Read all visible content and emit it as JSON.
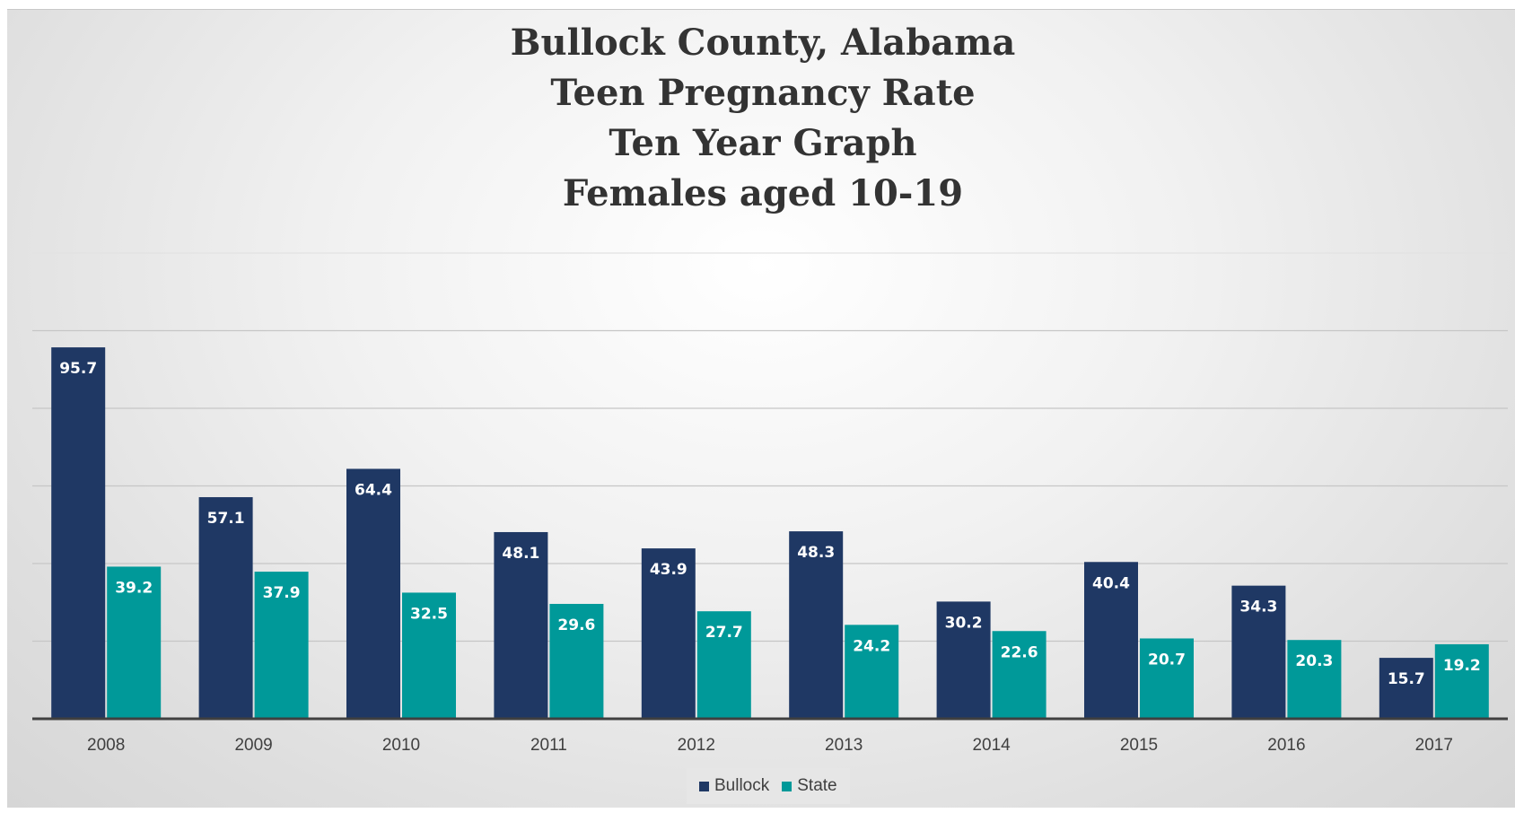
{
  "chart_data": {
    "type": "bar",
    "title_lines": [
      "Bullock County, Alabama",
      "Teen Pregnancy Rate",
      "Ten Year Graph",
      "Females aged 10-19"
    ],
    "categories": [
      "2008",
      "2009",
      "2010",
      "2011",
      "2012",
      "2013",
      "2014",
      "2015",
      "2016",
      "2017"
    ],
    "series": [
      {
        "name": "Bullock",
        "color": "#1f3864",
        "values": [
          95.7,
          57.1,
          64.4,
          48.1,
          43.9,
          48.3,
          30.2,
          40.4,
          34.3,
          15.7
        ]
      },
      {
        "name": "State",
        "color": "#009999",
        "values": [
          39.2,
          37.9,
          32.5,
          29.6,
          27.7,
          24.2,
          22.6,
          20.7,
          20.3,
          19.2
        ]
      }
    ],
    "ylim": [
      0,
      120
    ],
    "grid": true,
    "y_tick_labels_shown": false,
    "data_labels": true,
    "legend_position": "bottom"
  }
}
